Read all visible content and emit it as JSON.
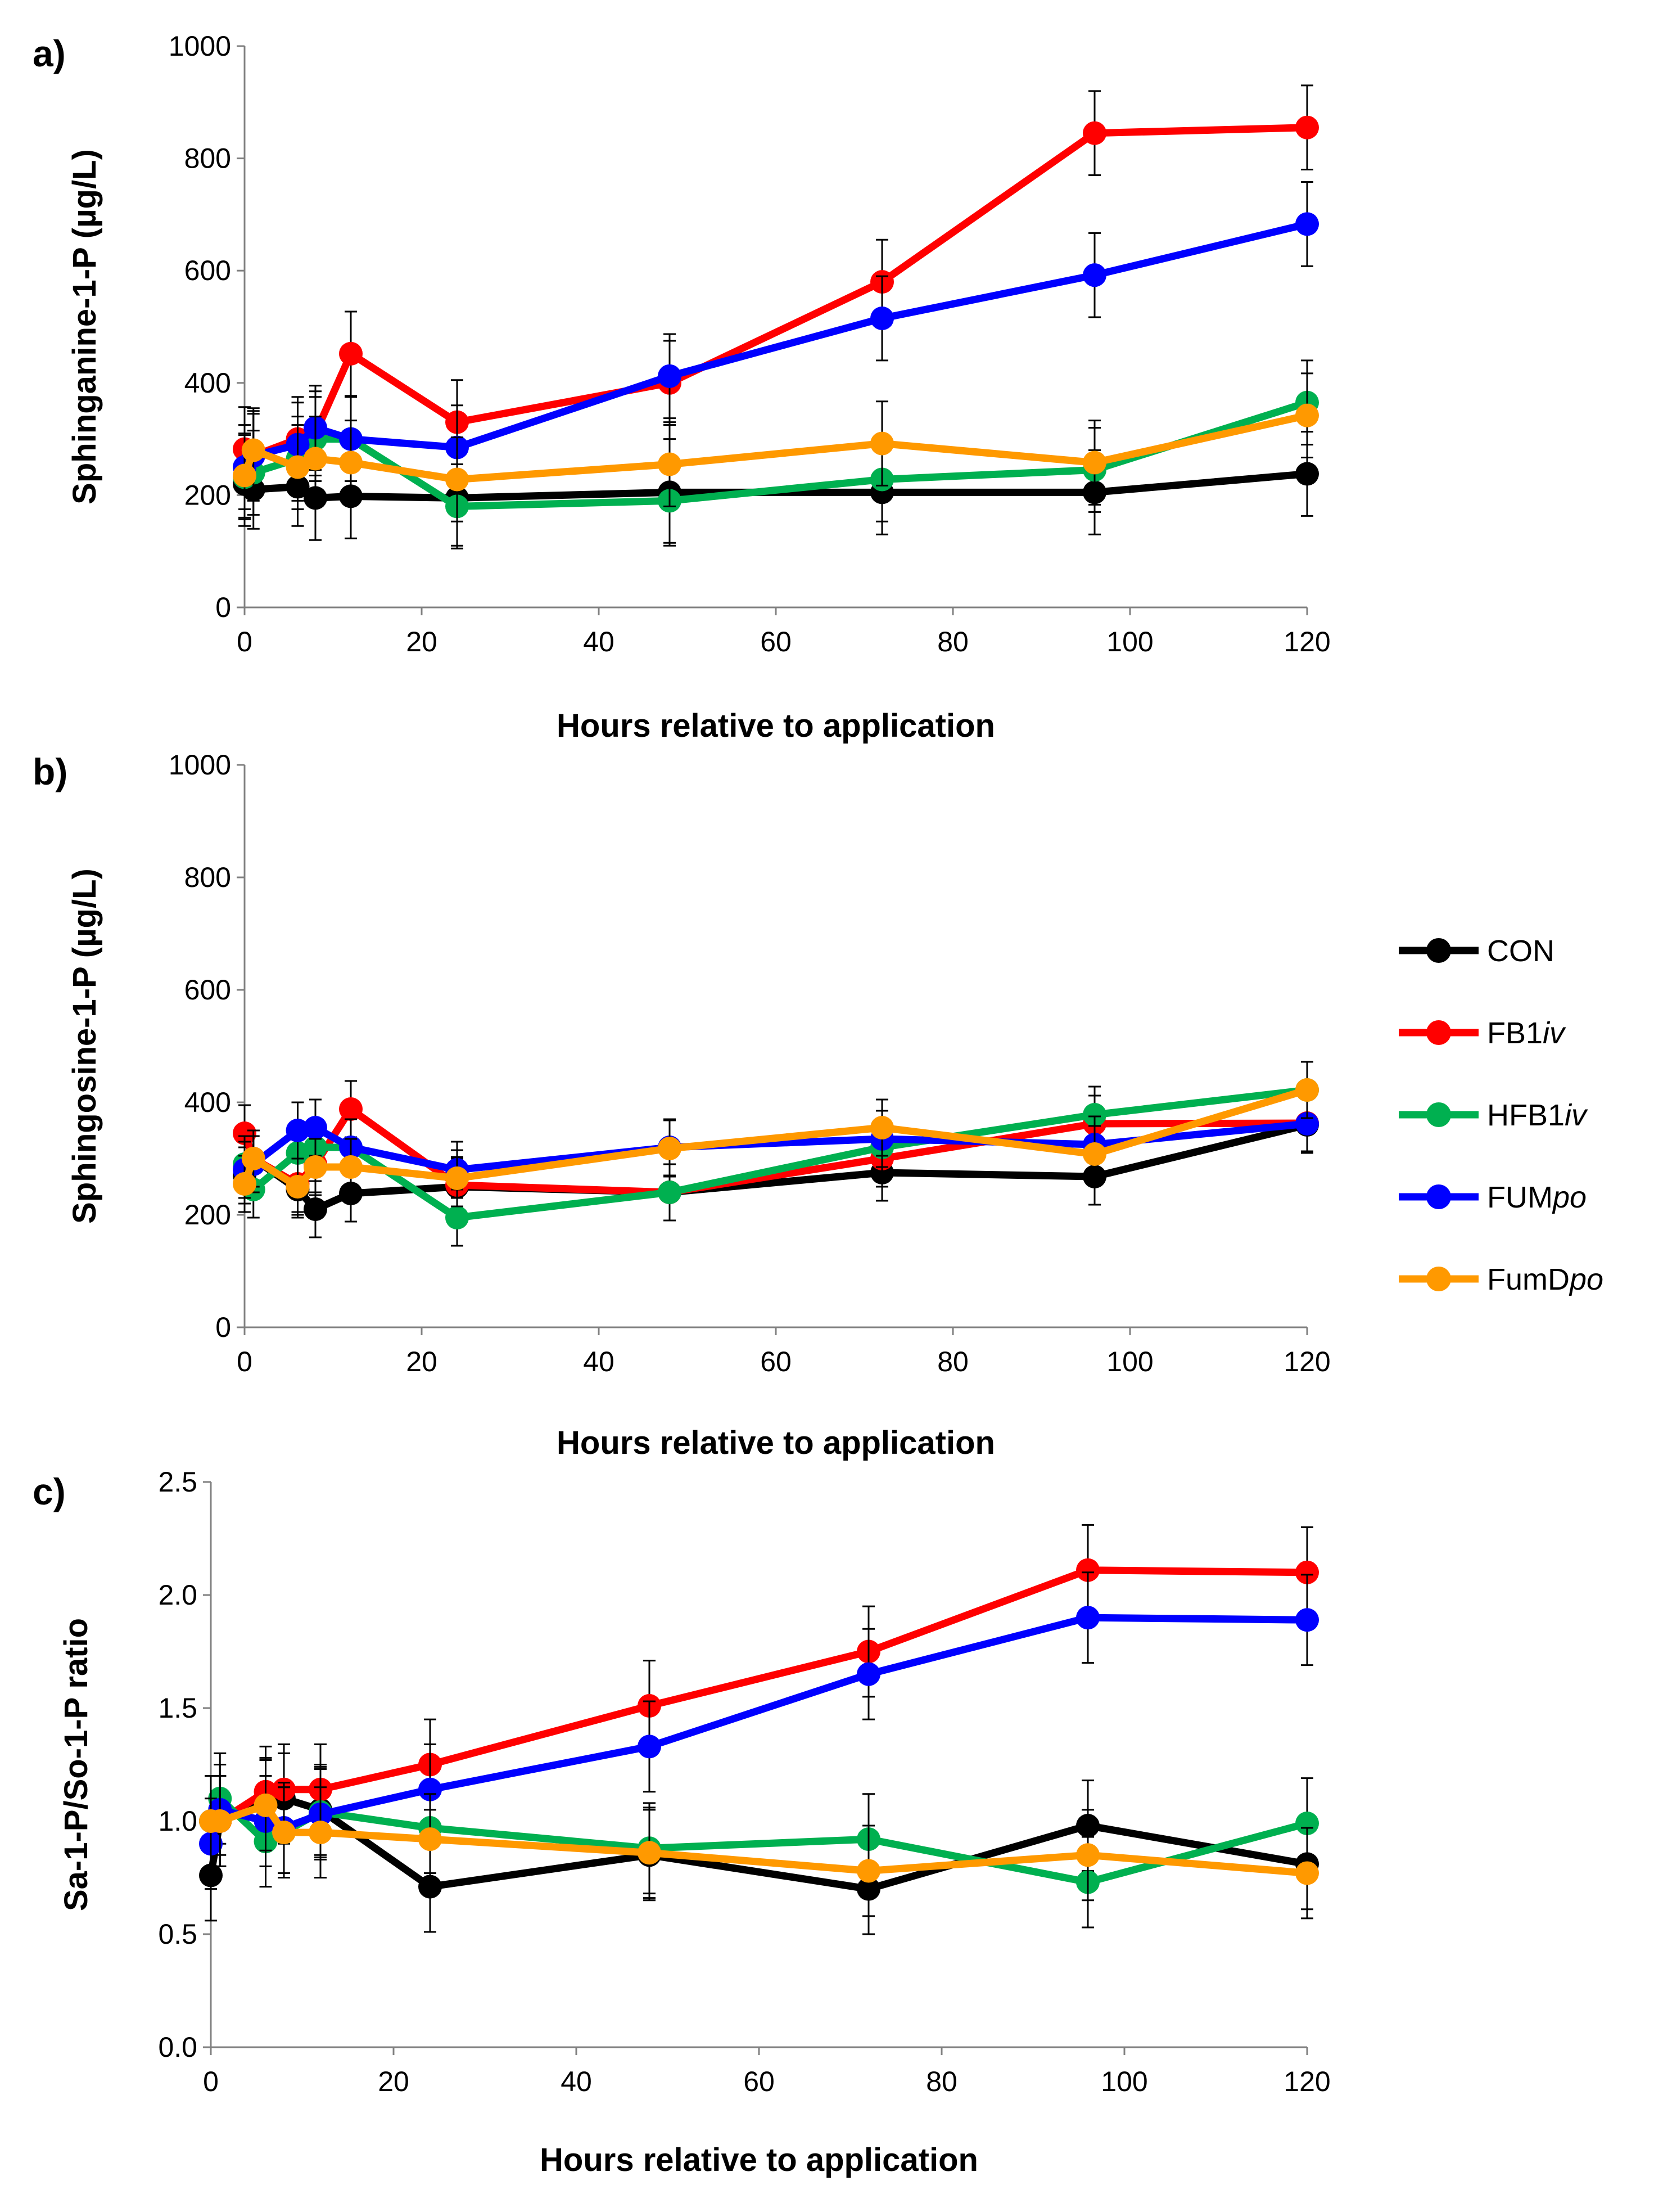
{
  "chart_data": [
    {
      "panel": "a)",
      "type": "line",
      "title": "",
      "xlabel": "Hours relative to application",
      "ylabel": "Sphinganine-1-P (µg/L)",
      "xlim": [
        0,
        120
      ],
      "ylim": [
        0,
        1000
      ],
      "xticks": [
        0,
        20,
        40,
        60,
        80,
        100,
        120
      ],
      "yticks": [
        0,
        200,
        400,
        600,
        800,
        1000
      ],
      "ytick_labels": [
        "0",
        "200",
        "400",
        "600",
        "800",
        "1000"
      ],
      "grid": false,
      "x": [
        0,
        1,
        6,
        8,
        12,
        24,
        48,
        72,
        96,
        120
      ],
      "series": [
        {
          "name": "CON",
          "color": "#000000",
          "values": [
            220,
            210,
            215,
            195,
            198,
            195,
            205,
            205,
            205,
            238
          ],
          "errors": [
            75,
            70,
            70,
            75,
            75,
            85,
            95,
            75,
            75,
            75
          ]
        },
        {
          "name": "FB1iv",
          "color": "#FF0000",
          "values": [
            282,
            270,
            300,
            310,
            452,
            330,
            400,
            580,
            845,
            855
          ],
          "errors": [
            75,
            80,
            75,
            75,
            75,
            75,
            75,
            75,
            75,
            75
          ]
        },
        {
          "name": "HFB1iv",
          "color": "#00B050",
          "values": [
            232,
            240,
            265,
            300,
            300,
            180,
            190,
            228,
            245,
            365
          ],
          "errors": [
            75,
            75,
            75,
            75,
            75,
            75,
            75,
            75,
            75,
            75
          ]
        },
        {
          "name": "FUMpo",
          "color": "#0000FF",
          "values": [
            250,
            270,
            290,
            320,
            300,
            285,
            412,
            515,
            592,
            683
          ],
          "errors": [
            75,
            75,
            75,
            75,
            75,
            75,
            75,
            75,
            75,
            75
          ]
        },
        {
          "name": "FumDpo",
          "color": "#FF9900",
          "values": [
            235,
            280,
            250,
            265,
            258,
            228,
            255,
            292,
            258,
            342
          ],
          "errors": [
            75,
            75,
            75,
            75,
            75,
            75,
            75,
            75,
            75,
            75
          ]
        }
      ]
    },
    {
      "panel": "b)",
      "type": "line",
      "title": "",
      "xlabel": "Hours relative to application",
      "ylabel": "Sphingosine-1-P (µg/L)",
      "xlim": [
        0,
        120
      ],
      "ylim": [
        0,
        1000
      ],
      "xticks": [
        0,
        20,
        40,
        60,
        80,
        100,
        120
      ],
      "yticks": [
        0,
        200,
        400,
        600,
        800,
        1000
      ],
      "ytick_labels": [
        "0",
        "200",
        "400",
        "600",
        "800",
        "1000"
      ],
      "grid": false,
      "x": [
        0,
        1,
        6,
        8,
        12,
        24,
        48,
        72,
        96,
        120
      ],
      "series": [
        {
          "name": "CON",
          "color": "#000000",
          "values": [
            270,
            300,
            245,
            210,
            238,
            250,
            240,
            275,
            268,
            360
          ],
          "errors": [
            50,
            50,
            50,
            50,
            50,
            50,
            50,
            50,
            50,
            50
          ]
        },
        {
          "name": "FB1iv",
          "color": "#FF0000",
          "values": [
            345,
            300,
            255,
            290,
            388,
            253,
            240,
            300,
            362,
            363
          ],
          "errors": [
            50,
            50,
            50,
            50,
            50,
            50,
            50,
            50,
            50,
            50
          ]
        },
        {
          "name": "HFB1iv",
          "color": "#00B050",
          "values": [
            290,
            245,
            310,
            320,
            320,
            195,
            240,
            320,
            378,
            422
          ],
          "errors": [
            50,
            50,
            50,
            50,
            50,
            50,
            50,
            50,
            50,
            50
          ]
        },
        {
          "name": "FUMpo",
          "color": "#0000FF",
          "values": [
            280,
            290,
            350,
            355,
            320,
            280,
            320,
            335,
            325,
            362
          ],
          "errors": [
            50,
            50,
            50,
            50,
            50,
            50,
            50,
            50,
            50,
            50
          ]
        },
        {
          "name": "FumDpo",
          "color": "#FF9900",
          "values": [
            255,
            300,
            250,
            285,
            285,
            265,
            318,
            355,
            308,
            422
          ],
          "errors": [
            50,
            50,
            50,
            50,
            50,
            50,
            50,
            50,
            50,
            50
          ]
        }
      ]
    },
    {
      "panel": "c)",
      "type": "line",
      "title": "",
      "xlabel": "Hours relative to application",
      "ylabel": "Sa-1-P/So-1-P ratio",
      "xlim": [
        0,
        120
      ],
      "ylim": [
        0,
        2.5
      ],
      "xticks": [
        0,
        20,
        40,
        60,
        80,
        100,
        120
      ],
      "yticks": [
        0,
        0.5,
        1.0,
        1.5,
        2.0,
        2.5
      ],
      "ytick_labels": [
        "0.0",
        "0.5",
        "1.0",
        "1.5",
        "2.0",
        "2.5"
      ],
      "grid": false,
      "x": [
        0,
        1,
        6,
        8,
        12,
        24,
        48,
        72,
        96,
        120
      ],
      "series": [
        {
          "name": "CON",
          "color": "#000000",
          "values": [
            0.76,
            1.0,
            1.08,
            1.1,
            1.05,
            0.71,
            0.85,
            0.7,
            0.98,
            0.81
          ],
          "errors": [
            0.2,
            0.2,
            0.2,
            0.2,
            0.2,
            0.2,
            0.2,
            0.2,
            0.2,
            0.2
          ]
        },
        {
          "name": "FB1iv",
          "color": "#FF0000",
          "values": [
            1.0,
            1.0,
            1.13,
            1.14,
            1.14,
            1.25,
            1.51,
            1.75,
            2.11,
            2.1
          ],
          "errors": [
            0.2,
            0.2,
            0.2,
            0.2,
            0.2,
            0.2,
            0.2,
            0.2,
            0.2,
            0.2
          ]
        },
        {
          "name": "HFB1iv",
          "color": "#00B050",
          "values": [
            1.0,
            1.1,
            0.91,
            0.95,
            1.04,
            0.97,
            0.88,
            0.92,
            0.73,
            0.99
          ],
          "errors": [
            0.2,
            0.2,
            0.2,
            0.2,
            0.2,
            0.2,
            0.2,
            0.2,
            0.2,
            0.2
          ]
        },
        {
          "name": "FUMpo",
          "color": "#0000FF",
          "values": [
            0.9,
            1.05,
            1.0,
            0.97,
            1.03,
            1.14,
            1.33,
            1.65,
            1.9,
            1.89
          ],
          "errors": [
            0.2,
            0.2,
            0.2,
            0.2,
            0.2,
            0.2,
            0.2,
            0.2,
            0.2,
            0.2
          ]
        },
        {
          "name": "FumDpo",
          "color": "#FF9900",
          "values": [
            1.0,
            1.0,
            1.07,
            0.95,
            0.95,
            0.92,
            0.86,
            0.78,
            0.85,
            0.77
          ],
          "errors": [
            0.2,
            0.2,
            0.2,
            0.2,
            0.2,
            0.2,
            0.2,
            0.2,
            0.2,
            0.2
          ]
        }
      ]
    }
  ],
  "legend": {
    "placement": "right",
    "entries": [
      {
        "base": "CON",
        "italic": "",
        "color": "#000000"
      },
      {
        "base": "FB1",
        "italic": "iv",
        "color": "#FF0000"
      },
      {
        "base": "HFB1",
        "italic": "iv",
        "color": "#00B050"
      },
      {
        "base": "FUM",
        "italic": "po",
        "color": "#0000FF"
      },
      {
        "base": "FumD",
        "italic": "po",
        "color": "#FF9900"
      }
    ]
  }
}
